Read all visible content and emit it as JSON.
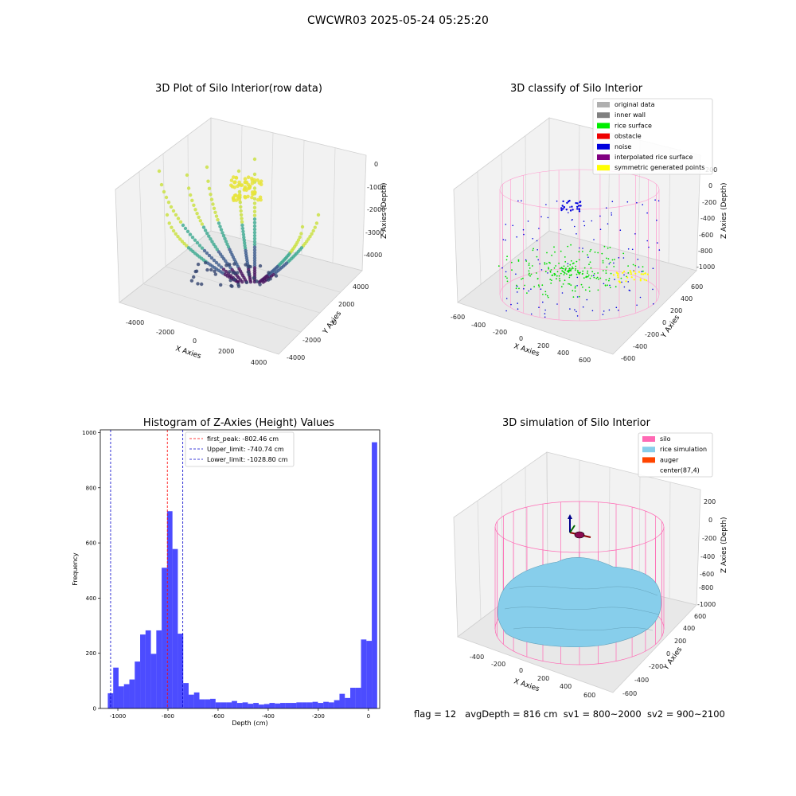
{
  "suptitle": "CWCWR03 2025-05-24 05:25:20",
  "panels": {
    "raw": {
      "title": "3D Plot of Silo Interior(row data)",
      "xlabel": "X Axies",
      "ylabel": "Y Axies",
      "zlabel": "Z Axies (Depth)",
      "xticks": [
        "-4000",
        "-2000",
        "0",
        "2000",
        "4000"
      ],
      "yticks": [
        "-4000",
        "-2000",
        "0",
        "2000",
        "4000"
      ],
      "zticks": [
        "0",
        "-1000",
        "-2000",
        "-3000",
        "-4000"
      ]
    },
    "classify": {
      "title": "3D classify of Silo Interior",
      "xlabel": "X Axies",
      "ylabel": "Y Axies",
      "zlabel": "Z Axies (Depth)",
      "xticks": [
        "-600",
        "-400",
        "-200",
        "0",
        "200",
        "400",
        "600"
      ],
      "yticks": [
        "-600",
        "-400",
        "-200",
        "0",
        "200",
        "400",
        "600"
      ],
      "zticks": [
        "200",
        "0",
        "-200",
        "-400",
        "-600",
        "-800",
        "-1000"
      ],
      "legend": [
        {
          "label": "original data",
          "color": "#b0b0b0"
        },
        {
          "label": "inner wall",
          "color": "#808080"
        },
        {
          "label": "rice surface",
          "color": "#00ee00"
        },
        {
          "label": "obstacle",
          "color": "#ee0000"
        },
        {
          "label": "noise",
          "color": "#0000dd"
        },
        {
          "label": "interpolated rice surface",
          "color": "#800080"
        },
        {
          "label": "symmetric generated points",
          "color": "#ffff00"
        }
      ]
    },
    "simulation": {
      "title": "3D simulation of Silo Interior",
      "xlabel": "X Axies",
      "ylabel": "Y Axies",
      "zlabel": "Z Axies (Depth)",
      "xticks": [
        "-400",
        "-200",
        "0",
        "200",
        "400",
        "600"
      ],
      "yticks": [
        "-600",
        "-400",
        "-200",
        "0",
        "200",
        "400",
        "600"
      ],
      "zticks": [
        "200",
        "0",
        "-200",
        "-400",
        "-600",
        "-800",
        "-1000"
      ],
      "legend": [
        {
          "label": "silo",
          "color": "#ff69b4"
        },
        {
          "label": "rice simulation",
          "color": "#87ceeb"
        },
        {
          "label": "auger",
          "color": "#ff4500"
        },
        {
          "label": "center(87,4)",
          "color": ""
        }
      ]
    }
  },
  "chart_data": {
    "type": "bar",
    "title": "Histogram of Z-Axies (Height) Values",
    "xlabel": "Depth (cm)",
    "ylabel": "Frequency",
    "xlim": [
      -1070,
      45
    ],
    "ylim": [
      0,
      1010
    ],
    "xticks": [
      -1000,
      -800,
      -600,
      -400,
      -200,
      0
    ],
    "yticks": [
      0,
      200,
      400,
      600,
      800,
      1000
    ],
    "bin_width": 21.5,
    "bin_start": -1040,
    "counts": [
      55,
      148,
      80,
      88,
      105,
      170,
      268,
      283,
      198,
      283,
      510,
      715,
      578,
      271,
      92,
      50,
      58,
      33,
      33,
      35,
      22,
      22,
      22,
      27,
      20,
      22,
      17,
      20,
      14,
      16,
      20,
      18,
      20,
      20,
      20,
      22,
      22,
      22,
      24,
      20,
      24,
      22,
      30,
      53,
      38,
      75,
      75,
      250,
      245,
      965
    ],
    "bar_color": "#0000ff",
    "lines": [
      {
        "label": "first_peak: -802.46 cm",
        "x": -802.46,
        "color": "#ff0000"
      },
      {
        "label": "Upper_limit: -740.74 cm",
        "x": -740.74,
        "color": "#0000cc"
      },
      {
        "label": "Lower_limit: -1028.80 cm",
        "x": -1028.8,
        "color": "#0000cc"
      }
    ]
  },
  "status": {
    "flag": "flag = 12",
    "avg": "avgDepth = 816 cm",
    "sv1": "sv1 = 800~2000",
    "sv2": "sv2 = 900~2100"
  }
}
